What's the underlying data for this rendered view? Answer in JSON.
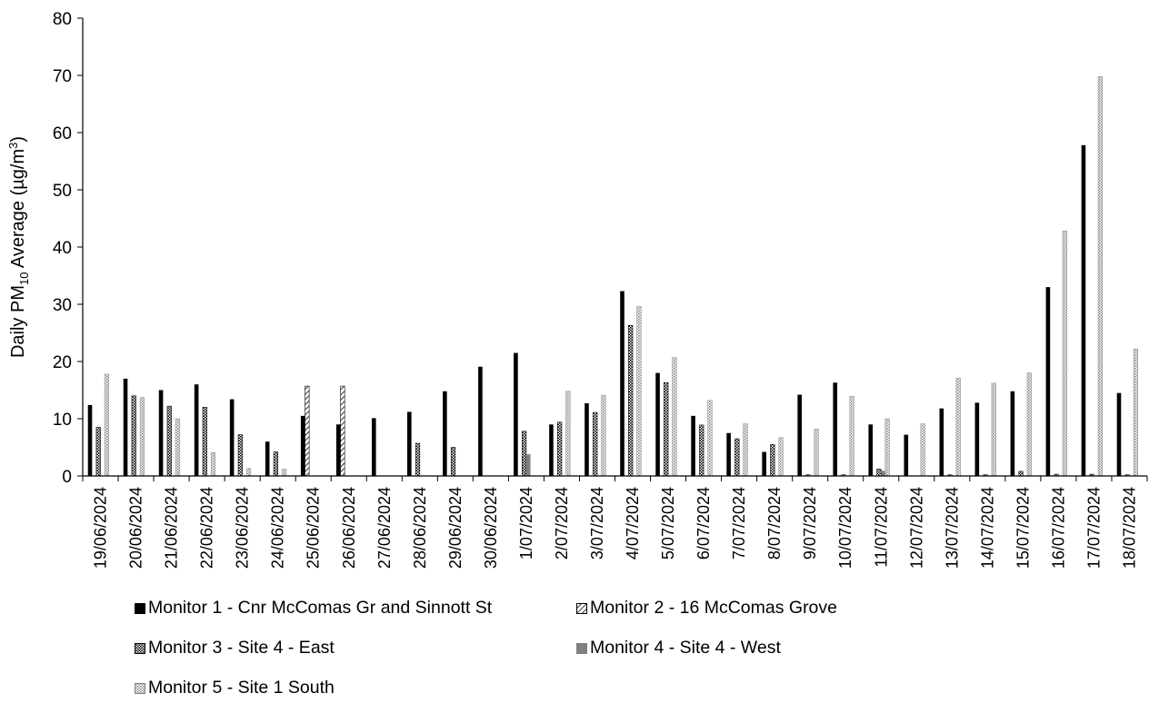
{
  "chart_data": {
    "type": "bar",
    "ylabel_parts": [
      "Daily PM",
      "10",
      " Average (µg/m",
      "3",
      ")"
    ],
    "ylim": [
      0,
      80
    ],
    "yticks": [
      0,
      10,
      20,
      30,
      40,
      50,
      60,
      70,
      80
    ],
    "grid": false,
    "legend_position": "bottom",
    "categories": [
      "19/06/2024",
      "20/06/2024",
      "21/06/2024",
      "22/06/2024",
      "23/06/2024",
      "24/06/2024",
      "25/06/2024",
      "26/06/2024",
      "27/06/2024",
      "28/06/2024",
      "29/06/2024",
      "30/06/2024",
      "1/07/2024",
      "2/07/2024",
      "3/07/2024",
      "4/07/2024",
      "5/07/2024",
      "6/07/2024",
      "7/07/2024",
      "8/07/2024",
      "9/07/2024",
      "10/07/2024",
      "11/07/2024",
      "12/07/2024",
      "13/07/2024",
      "14/07/2024",
      "15/07/2024",
      "16/07/2024",
      "17/07/2024",
      "18/07/2024"
    ],
    "series": [
      {
        "name": "Monitor 1 - Cnr McComas Gr and Sinnott St",
        "pattern": "solid-black",
        "values": [
          12.4,
          17.0,
          15.0,
          16.0,
          13.4,
          6.0,
          10.5,
          9.0,
          10.1,
          11.2,
          14.8,
          19.1,
          21.5,
          9.0,
          12.7,
          32.3,
          18.0,
          10.5,
          7.5,
          4.2,
          14.2,
          16.3,
          9.0,
          7.2,
          11.8,
          12.8,
          14.8,
          33.0,
          57.8,
          14.5
        ]
      },
      {
        "name": "Monitor 2 - 16 McComas Grove",
        "pattern": "diagonal",
        "values": [
          0,
          0,
          0,
          0,
          0,
          0,
          15.7,
          15.7,
          0,
          0,
          0,
          0,
          0,
          0,
          0,
          0,
          0,
          0,
          0,
          0,
          0,
          0,
          0,
          0,
          0,
          0,
          0,
          0,
          0,
          0
        ]
      },
      {
        "name": "Monitor 3 - Site 4 - East",
        "pattern": "checker",
        "values": [
          8.5,
          14.0,
          12.2,
          12.0,
          7.2,
          4.2,
          0,
          0,
          0,
          5.7,
          5.0,
          0,
          7.8,
          9.4,
          11.1,
          26.3,
          16.3,
          8.9,
          6.5,
          5.5,
          0.2,
          0.2,
          1.2,
          0,
          0.2,
          0.2,
          0.8,
          0.3,
          0.3,
          0.2
        ]
      },
      {
        "name": "Monitor 4 - Site 4 - West",
        "pattern": "solid-grey",
        "values": [
          0,
          0,
          0,
          0,
          0,
          0,
          0,
          0,
          0,
          0,
          0,
          0,
          3.8,
          0,
          0,
          0,
          0,
          0,
          0,
          0,
          0,
          0,
          0.9,
          0,
          0,
          0,
          0,
          0,
          0,
          0
        ]
      },
      {
        "name": "Monitor 5 - Site 1 South",
        "pattern": "dotted",
        "values": [
          17.8,
          13.7,
          10.0,
          4.1,
          1.3,
          1.2,
          0,
          0,
          0,
          0,
          0,
          0,
          0,
          14.8,
          14.1,
          29.6,
          20.7,
          13.2,
          9.1,
          6.7,
          8.2,
          13.9,
          10.0,
          9.1,
          17.1,
          16.2,
          18.0,
          42.8,
          69.8,
          22.2
        ]
      }
    ]
  },
  "colors": {
    "axis": "#000000",
    "monitor1": "#000000",
    "monitor4": "#808080",
    "pattern_ink": "#000000",
    "monitor5_ink": "#808080"
  }
}
